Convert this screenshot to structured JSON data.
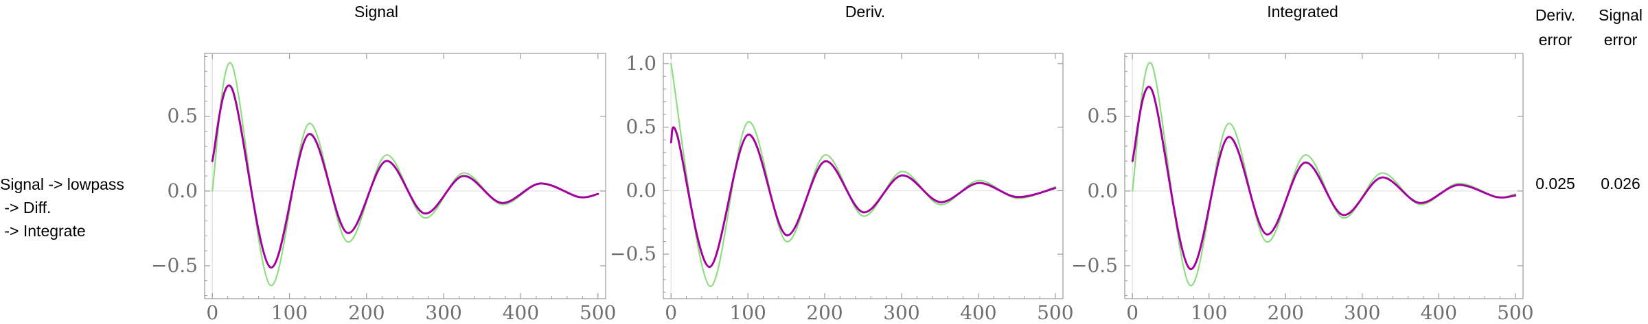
{
  "row_label": [
    "Signal -> lowpass",
    " -> Diff.",
    " -> Integrate"
  ],
  "columns": {
    "signal": "Signal",
    "deriv": "Deriv.",
    "integrated": "Integrated",
    "deriv_error": [
      "Deriv.",
      "error"
    ],
    "signal_error": [
      "Signal",
      "error"
    ]
  },
  "errors": {
    "deriv": "0.025",
    "signal": "0.026"
  },
  "colors": {
    "reference": "#8fdc82",
    "filtered": "#a3009e",
    "frame": "#999999",
    "zero_line": "#e6e6e6"
  },
  "chart_data": [
    {
      "type": "line",
      "title": "Signal",
      "xlim": [
        -10,
        510
      ],
      "ylim": [
        -0.72,
        0.92
      ],
      "xticks": [
        0,
        100,
        200,
        300,
        400,
        500
      ],
      "yticks": [
        -0.5,
        0.0,
        0.5
      ],
      "ytick_labels": [
        "−0.5",
        "0.0",
        "0.5"
      ],
      "series": [
        {
          "x": [
            0,
            25,
            75,
            125,
            175,
            225,
            275,
            325,
            375,
            425,
            475,
            500
          ],
          "y": [
            0.0,
            0.85,
            -0.63,
            0.45,
            -0.34,
            0.24,
            -0.18,
            0.12,
            -0.09,
            0.05,
            -0.04,
            -0.02
          ]
        },
        {
          "x": [
            0,
            25,
            75,
            125,
            175,
            225,
            275,
            325,
            375,
            425,
            475,
            500
          ],
          "y": [
            0.2,
            0.69,
            -0.51,
            0.38,
            -0.28,
            0.2,
            -0.15,
            0.1,
            -0.08,
            0.05,
            -0.04,
            -0.02
          ]
        }
      ]
    },
    {
      "type": "line",
      "title": "Deriv.",
      "xlim": [
        -10,
        510
      ],
      "ylim": [
        -0.85,
        1.08
      ],
      "xticks": [
        0,
        100,
        200,
        300,
        400,
        500
      ],
      "yticks": [
        -0.5,
        0.0,
        0.5,
        1.0
      ],
      "ytick_labels": [
        "−0.5",
        "0.0",
        "0.5",
        "1.0"
      ],
      "series": [
        {
          "x": [
            0,
            50,
            100,
            150,
            200,
            250,
            300,
            350,
            400,
            450,
            500
          ],
          "y": [
            1.0,
            -0.75,
            0.54,
            -0.4,
            0.28,
            -0.2,
            0.15,
            -0.11,
            0.08,
            -0.06,
            0.03
          ]
        },
        {
          "x": [
            0,
            8,
            50,
            100,
            150,
            200,
            250,
            300,
            350,
            400,
            450,
            500
          ],
          "y": [
            0.38,
            0.44,
            -0.6,
            0.44,
            -0.35,
            0.23,
            -0.17,
            0.12,
            -0.09,
            0.06,
            -0.05,
            0.02
          ]
        }
      ]
    },
    {
      "type": "line",
      "title": "Integrated",
      "xlim": [
        -10,
        510
      ],
      "ylim": [
        -0.72,
        0.92
      ],
      "xticks": [
        0,
        100,
        200,
        300,
        400,
        500
      ],
      "yticks": [
        -0.5,
        0.0,
        0.5
      ],
      "ytick_labels": [
        "−0.5",
        "0.0",
        "0.5"
      ],
      "series": [
        {
          "x": [
            0,
            25,
            75,
            125,
            175,
            225,
            275,
            325,
            375,
            425,
            475,
            500
          ],
          "y": [
            0.0,
            0.85,
            -0.63,
            0.45,
            -0.34,
            0.24,
            -0.18,
            0.12,
            -0.09,
            0.05,
            -0.04,
            -0.02
          ]
        },
        {
          "x": [
            0,
            25,
            75,
            125,
            175,
            225,
            275,
            325,
            375,
            425,
            475,
            500
          ],
          "y": [
            0.2,
            0.68,
            -0.52,
            0.36,
            -0.29,
            0.19,
            -0.16,
            0.09,
            -0.08,
            0.04,
            -0.04,
            -0.03
          ]
        }
      ]
    }
  ]
}
